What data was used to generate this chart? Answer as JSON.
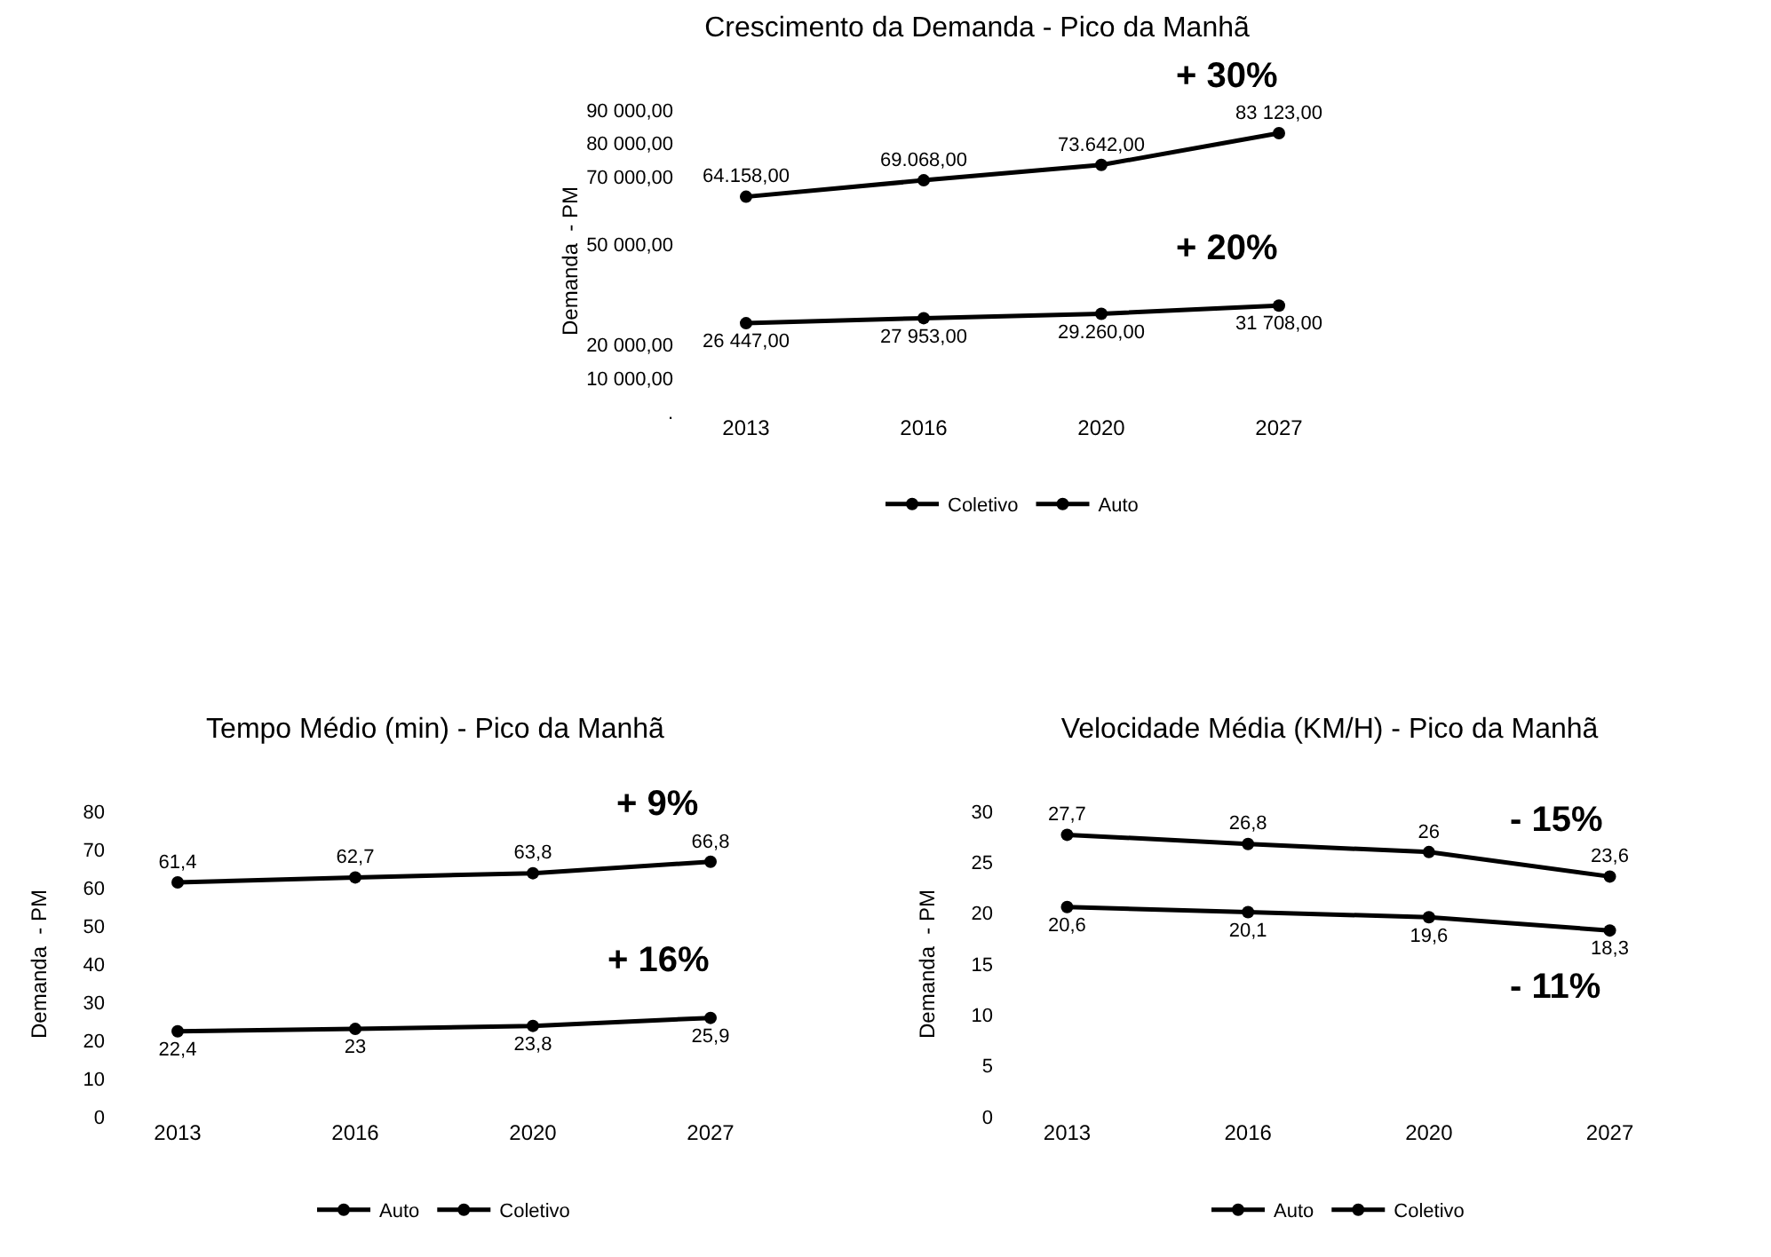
{
  "chart_data": [
    {
      "type": "line",
      "title": "Crescimento da Demanda - Pico da Manhã",
      "ylabel": "Demanda  - PM",
      "categories": [
        "2013",
        "2016",
        "2020",
        "2027"
      ],
      "series": [
        {
          "name": "Coletivo",
          "color": "#000000",
          "values": [
            64158,
            69068,
            73642,
            83123
          ],
          "value_labels": [
            "64.158,00",
            "69.068,00",
            "73.642,00",
            "83 123,00"
          ]
        },
        {
          "name": "Auto",
          "color": "#000000",
          "values": [
            26447,
            27953,
            29260,
            31708
          ],
          "value_labels": [
            "26 447,00",
            "27 953,00",
            "29.260,00",
            "31 708,00"
          ]
        }
      ],
      "ylim": [
        0,
        90000
      ],
      "yticks": [
        {
          "value": 90000,
          "label": "90 000,00"
        },
        {
          "value": 80000,
          "label": "80 000,00"
        },
        {
          "value": 70000,
          "label": "70 000,00"
        },
        {
          "value": 50000,
          "label": "50 000,00"
        },
        {
          "value": 20000,
          "label": "20 000,00"
        },
        {
          "value": 10000,
          "label": "10 000,00"
        },
        {
          "value": 0,
          "label": "."
        }
      ],
      "annotations": [
        "+ 30%",
        "+ 20%"
      ],
      "grid": false,
      "legend": "bottom",
      "marker": "circle",
      "line_style": "solid"
    },
    {
      "type": "line",
      "title": "Tempo Médio (min) - Pico da Manhã",
      "ylabel": "Demanda  - PM",
      "categories": [
        "2013",
        "2016",
        "2020",
        "2027"
      ],
      "series": [
        {
          "name": "Auto",
          "color": "#000000",
          "values": [
            22.4,
            23,
            23.8,
            25.9
          ],
          "value_labels": [
            "22,4",
            "23",
            "23,8",
            "25,9"
          ]
        },
        {
          "name": "Coletivo",
          "color": "#000000",
          "values": [
            61.4,
            62.7,
            63.8,
            66.8
          ],
          "value_labels": [
            "61,4",
            "62,7",
            "63,8",
            "66,8"
          ]
        }
      ],
      "ylim": [
        0,
        80
      ],
      "yticks": [
        0,
        10,
        20,
        30,
        40,
        50,
        60,
        70,
        80
      ],
      "annotations": [
        "+ 9%",
        "+ 16%"
      ],
      "grid": false,
      "legend": "bottom",
      "marker": "circle",
      "line_style": "solid"
    },
    {
      "type": "line",
      "title": "Velocidade Média (KM/H) - Pico da Manhã",
      "ylabel": "Demanda  - PM",
      "categories": [
        "2013",
        "2016",
        "2020",
        "2027"
      ],
      "series": [
        {
          "name": "Auto",
          "color": "#000000",
          "values": [
            27.7,
            26.8,
            26,
            23.6
          ],
          "value_labels": [
            "27,7",
            "26,8",
            "26",
            "23,6"
          ]
        },
        {
          "name": "Coletivo",
          "color": "#000000",
          "values": [
            20.6,
            20.1,
            19.6,
            18.3
          ],
          "value_labels": [
            "20,6",
            "20,1",
            "19,6",
            "18,3"
          ]
        }
      ],
      "ylim": [
        0,
        30
      ],
      "yticks": [
        0,
        5,
        10,
        15,
        20,
        25,
        30
      ],
      "annotations": [
        "- 15%",
        "- 11%"
      ],
      "grid": false,
      "legend": "bottom",
      "marker": "circle",
      "line_style": "solid"
    }
  ]
}
